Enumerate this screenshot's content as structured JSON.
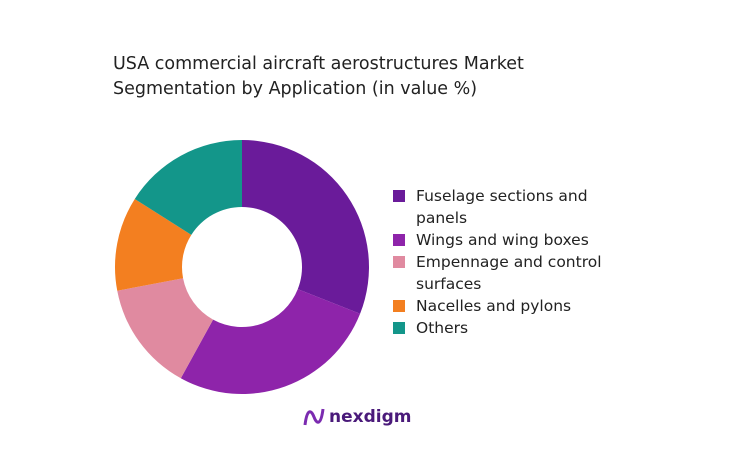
{
  "chart_data": {
    "type": "donut",
    "title": "USA commercial aircraft aerostructures Market Segmentation by Application (in value %)",
    "categories": [
      "Fuselage sections and panels",
      "Wings and wing boxes",
      "Empennage and control surfaces",
      "Nacelles and pylons",
      "Others"
    ],
    "values": [
      31,
      27,
      14,
      12,
      16
    ],
    "colors": [
      "#6a1b9a",
      "#8e24aa",
      "#e08aa0",
      "#f37f20",
      "#13968a"
    ]
  },
  "brand": "nexdigm"
}
